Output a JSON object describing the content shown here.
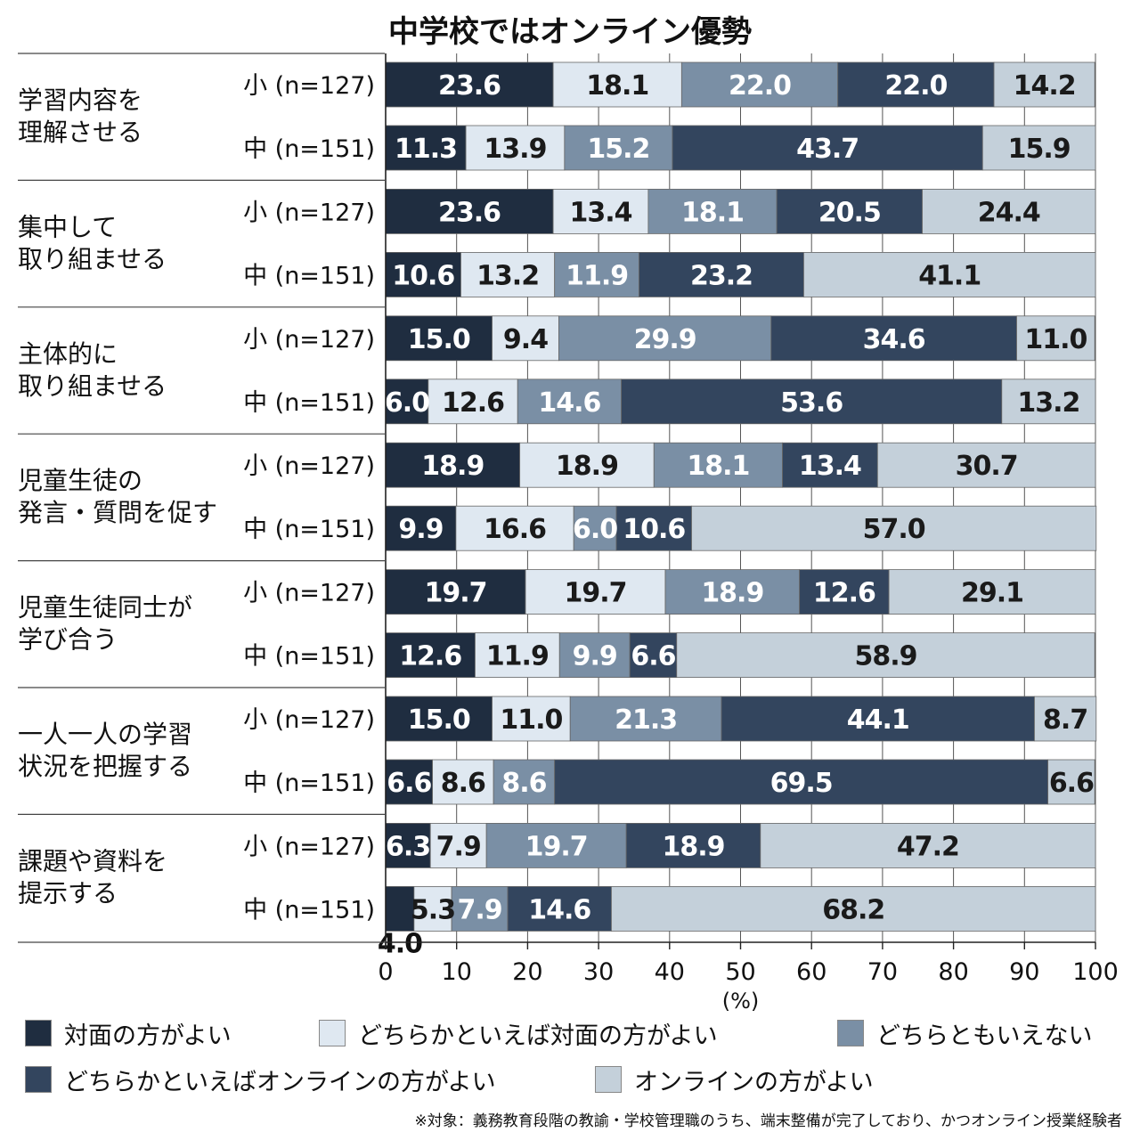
{
  "title": "中学校ではオンライン優勢",
  "chart_data": {
    "type": "bar",
    "orientation": "horizontal",
    "stacked": true,
    "groups": [
      {
        "label": [
          "学習内容を",
          "理解させる"
        ],
        "rows": [
          {
            "label": "小 (n=127)",
            "values": [
              23.6,
              18.1,
              22.0,
              22.0,
              14.2
            ]
          },
          {
            "label": "中 (n=151)",
            "values": [
              11.3,
              13.9,
              15.2,
              43.7,
              15.9
            ]
          }
        ]
      },
      {
        "label": [
          "集中して",
          "取り組ませる"
        ],
        "rows": [
          {
            "label": "小 (n=127)",
            "values": [
              23.6,
              13.4,
              18.1,
              20.5,
              24.4
            ]
          },
          {
            "label": "中 (n=151)",
            "values": [
              10.6,
              13.2,
              11.9,
              23.2,
              41.1
            ]
          }
        ]
      },
      {
        "label": [
          "主体的に",
          "取り組ませる"
        ],
        "rows": [
          {
            "label": "小 (n=127)",
            "values": [
              15.0,
              9.4,
              29.9,
              34.6,
              11.0
            ]
          },
          {
            "label": "中 (n=151)",
            "values": [
              6.0,
              12.6,
              14.6,
              53.6,
              13.2
            ]
          }
        ]
      },
      {
        "label": [
          "児童生徒の",
          "発言・質問を促す"
        ],
        "rows": [
          {
            "label": "小 (n=127)",
            "values": [
              18.9,
              18.9,
              18.1,
              13.4,
              30.7
            ]
          },
          {
            "label": "中 (n=151)",
            "values": [
              9.9,
              16.6,
              6.0,
              10.6,
              57.0
            ]
          }
        ]
      },
      {
        "label": [
          "児童生徒同士が",
          "学び合う"
        ],
        "rows": [
          {
            "label": "小 (n=127)",
            "values": [
              19.7,
              19.7,
              18.9,
              12.6,
              29.1
            ]
          },
          {
            "label": "中 (n=151)",
            "values": [
              12.6,
              11.9,
              9.9,
              6.6,
              58.9
            ]
          }
        ]
      },
      {
        "label": [
          "一人一人の学習",
          "状況を把握する"
        ],
        "rows": [
          {
            "label": "小 (n=127)",
            "values": [
              15.0,
              11.0,
              21.3,
              44.1,
              8.7
            ]
          },
          {
            "label": "中 (n=151)",
            "values": [
              6.6,
              8.6,
              8.6,
              69.5,
              6.6
            ]
          }
        ]
      },
      {
        "label": [
          "課題や資料を",
          "提示する"
        ],
        "rows": [
          {
            "label": "小 (n=127)",
            "values": [
              6.3,
              7.9,
              19.7,
              18.9,
              47.2
            ]
          },
          {
            "label": "中 (n=151)",
            "values": [
              4.0,
              5.3,
              7.9,
              14.6,
              68.2
            ]
          }
        ]
      }
    ],
    "series": [
      {
        "name": "対面の方がよい",
        "color": "#1f2d40",
        "label_color": "#ffffff"
      },
      {
        "name": "どちらかといえば対面の方がよい",
        "color": "#dfe8f1",
        "label_color": "#1a1a1a"
      },
      {
        "name": "どちらともいえない",
        "color": "#7a8fa5",
        "label_color": "#ffffff"
      },
      {
        "name": "どちらかといえばオンラインの方がよい",
        "color": "#33455e",
        "label_color": "#ffffff"
      },
      {
        "name": "オンラインの方がよい",
        "color": "#c4d0da",
        "label_color": "#1a1a1a"
      }
    ],
    "x_ticks": [
      "0",
      "10",
      "20",
      "30",
      "40",
      "50",
      "60",
      "70",
      "80",
      "90",
      "100"
    ],
    "x_unit": "(%)",
    "xlim": [
      0,
      100
    ],
    "grid": "vertical"
  },
  "legend": {
    "items": [
      {
        "label": "対面の方がよい",
        "color": "#1f2d40"
      },
      {
        "label": "どちらかといえば対面の方がよい",
        "color": "#dfe8f1"
      },
      {
        "label": "どちらともいえない",
        "color": "#7a8fa5"
      },
      {
        "label": "どちらかといえばオンラインの方がよい",
        "color": "#33455e"
      },
      {
        "label": "オンラインの方がよい",
        "color": "#c4d0da"
      }
    ]
  },
  "footnote": "※対象：義務教育段階の教諭・学校管理職のうち、端末整備が完了しており、かつオンライン授業経験者"
}
